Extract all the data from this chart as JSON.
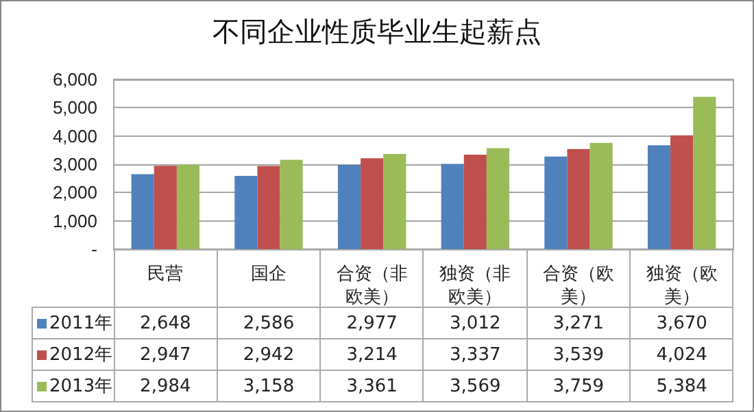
{
  "chart_data": {
    "type": "bar",
    "title": "不同企业性质毕业生起薪点",
    "categories": [
      "民营",
      "国企",
      "合资（非欧美）",
      "独资（非欧美）",
      "合资（欧美）",
      "独资（欧美）"
    ],
    "series": [
      {
        "name": "2011年",
        "color": "#4f81bd",
        "values": [
          2648,
          2586,
          2977,
          3012,
          3271,
          3670
        ],
        "value_labels": [
          "2,648",
          "2,586",
          "2,977",
          "3,012",
          "3,271",
          "3,670"
        ]
      },
      {
        "name": "2012年",
        "color": "#c0504d",
        "values": [
          2947,
          2942,
          3214,
          3337,
          3539,
          4024
        ],
        "value_labels": [
          "2,947",
          "2,942",
          "3,214",
          "3,337",
          "3,539",
          "4,024"
        ]
      },
      {
        "name": "2013年",
        "color": "#9bbb59",
        "values": [
          2984,
          3158,
          3361,
          3569,
          3759,
          5384
        ],
        "value_labels": [
          "2,984",
          "3,158",
          "3,361",
          "3,569",
          "3,759",
          "5,384"
        ]
      }
    ],
    "ylim": [
      0,
      6000
    ],
    "yticks": [
      {
        "value": 0,
        "label": "-"
      },
      {
        "value": 1000,
        "label": "1,000"
      },
      {
        "value": 2000,
        "label": "2,000"
      },
      {
        "value": 3000,
        "label": "3,000"
      },
      {
        "value": 4000,
        "label": "4,000"
      },
      {
        "value": 5000,
        "label": "5,000"
      },
      {
        "value": 6000,
        "label": "6,000"
      }
    ],
    "grid": "y",
    "legend": "bottom"
  }
}
